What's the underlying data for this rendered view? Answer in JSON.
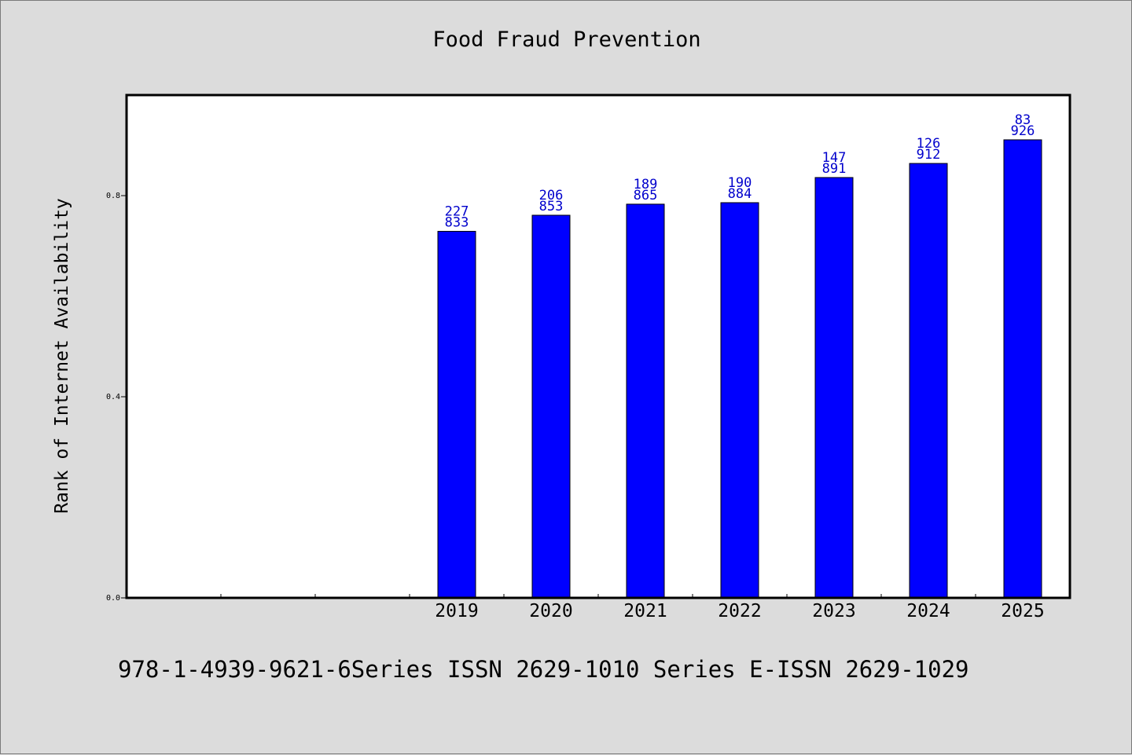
{
  "chart_data": {
    "type": "bar",
    "title": "Food Fraud Prevention",
    "xlabel": "",
    "ylabel": "Rank of Internet Availability",
    "categories": [
      "",
      "",
      "",
      "2019",
      "2020",
      "2021",
      "2022",
      "2023",
      "2024",
      "2025"
    ],
    "values": [
      null,
      null,
      null,
      0.729,
      0.761,
      0.783,
      0.786,
      0.836,
      0.864,
      0.911
    ],
    "bar_labels": [
      [
        "",
        ""
      ],
      [
        "",
        ""
      ],
      [
        "",
        ""
      ],
      [
        "227",
        "833"
      ],
      [
        "206",
        "853"
      ],
      [
        "189",
        "865"
      ],
      [
        "190",
        "884"
      ],
      [
        "147",
        "891"
      ],
      [
        "126",
        "912"
      ],
      [
        "83",
        "926"
      ]
    ],
    "ylim": [
      0,
      1.0
    ],
    "yticks": [
      0.0,
      0.4,
      0.8
    ],
    "ytick_labels": [
      "0.0",
      "0.4",
      "0.8"
    ],
    "grid": false,
    "legend": "none",
    "bar_color": "#0000ff",
    "label_color": "#0000cc"
  },
  "footer": {
    "text": "978-1-4939-9621-6Series ISSN 2629-1010 Series E-ISSN 2629-1029"
  }
}
